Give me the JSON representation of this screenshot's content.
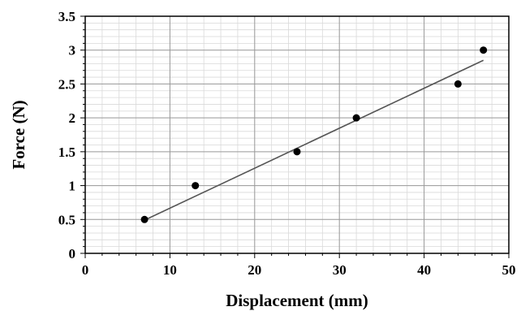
{
  "chart_data": {
    "type": "scatter",
    "title": "",
    "xlabel": "Displacement (mm)",
    "ylabel": "Force (N)",
    "xlim": [
      0,
      50
    ],
    "ylim": [
      0,
      3.5
    ],
    "xticks": [
      0,
      10,
      20,
      30,
      40,
      50
    ],
    "yticks": [
      0,
      0.5,
      1,
      1.5,
      2,
      2.5,
      3,
      3.5
    ],
    "xtick_labels": [
      "0",
      "10",
      "20",
      "30",
      "40",
      "50"
    ],
    "ytick_labels": [
      "0",
      "0.5",
      "1",
      "1.5",
      "2",
      "2.5",
      "3",
      "3.5"
    ],
    "grid": true,
    "legend": "none",
    "series": [
      {
        "x": [
          7,
          13,
          25,
          32,
          44,
          47
        ],
        "y": [
          0.5,
          1.0,
          1.5,
          2.0,
          2.5,
          3.0
        ],
        "marker": "circle",
        "color": "#000000"
      }
    ],
    "trendline": {
      "type": "linear",
      "x": [
        7,
        47
      ],
      "y": [
        0.49,
        2.85
      ],
      "color": "#555555"
    }
  }
}
